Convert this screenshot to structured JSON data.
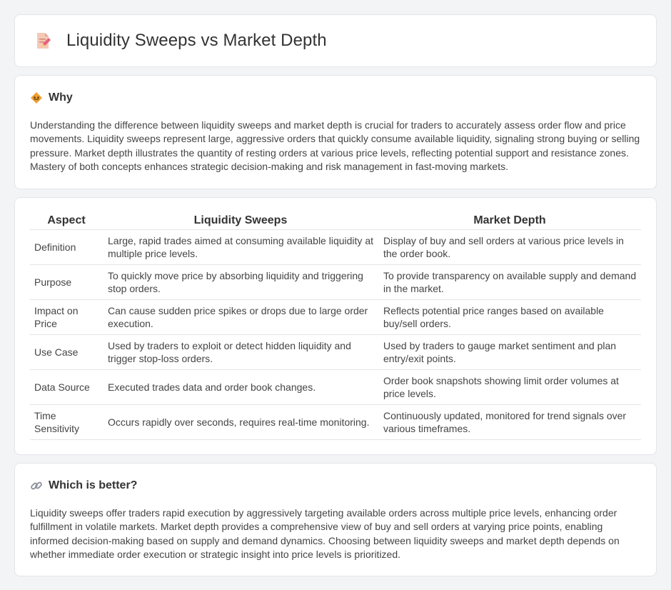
{
  "header": {
    "title": "Liquidity Sweeps vs Market Depth",
    "icon": "document-edit-icon"
  },
  "why": {
    "title": "Why",
    "icon": "diamond-sign-icon",
    "text": "Understanding the difference between liquidity sweeps and market depth is crucial for traders to accurately assess order flow and price movements. Liquidity sweeps represent large, aggressive orders that quickly consume available liquidity, signaling strong buying or selling pressure. Market depth illustrates the quantity of resting orders at various price levels, reflecting potential support and resistance zones. Mastery of both concepts enhances strategic decision-making and risk management in fast-moving markets."
  },
  "comparison": {
    "headers": [
      "Aspect",
      "Liquidity Sweeps",
      "Market Depth"
    ],
    "rows": [
      {
        "aspect": "Definition",
        "sweep": "Large, rapid trades aimed at consuming available liquidity at multiple price levels.",
        "depth": "Display of buy and sell orders at various price levels in the order book."
      },
      {
        "aspect": "Purpose",
        "sweep": "To quickly move price by absorbing liquidity and triggering stop orders.",
        "depth": "To provide transparency on available supply and demand in the market."
      },
      {
        "aspect": "Impact on Price",
        "sweep": "Can cause sudden price spikes or drops due to large order execution.",
        "depth": "Reflects potential price ranges based on available buy/sell orders."
      },
      {
        "aspect": "Use Case",
        "sweep": "Used by traders to exploit or detect hidden liquidity and trigger stop-loss orders.",
        "depth": "Used by traders to gauge market sentiment and plan entry/exit points."
      },
      {
        "aspect": "Data Source",
        "sweep": "Executed trades data and order book changes.",
        "depth": "Order book snapshots showing limit order volumes at price levels."
      },
      {
        "aspect": "Time Sensitivity",
        "sweep": "Occurs rapidly over seconds, requires real-time monitoring.",
        "depth": "Continuously updated, monitored for trend signals over various timeframes."
      }
    ]
  },
  "better": {
    "title": "Which is better?",
    "icon": "link-icon",
    "text": "Liquidity sweeps offer traders rapid execution by aggressively targeting available orders across multiple price levels, enhancing order fulfillment in volatile markets. Market depth provides a comprehensive view of buy and sell orders at varying price points, enabling informed decision-making based on supply and demand dynamics. Choosing between liquidity sweeps and market depth depends on whether immediate order execution or strategic insight into price levels is prioritized."
  },
  "colors": {
    "background": "#f3f4f6",
    "card": "#ffffff",
    "border": "#e3e5e8",
    "text": "#333333",
    "accent_orange": "#f0a030",
    "accent_pink": "#e8607a"
  }
}
